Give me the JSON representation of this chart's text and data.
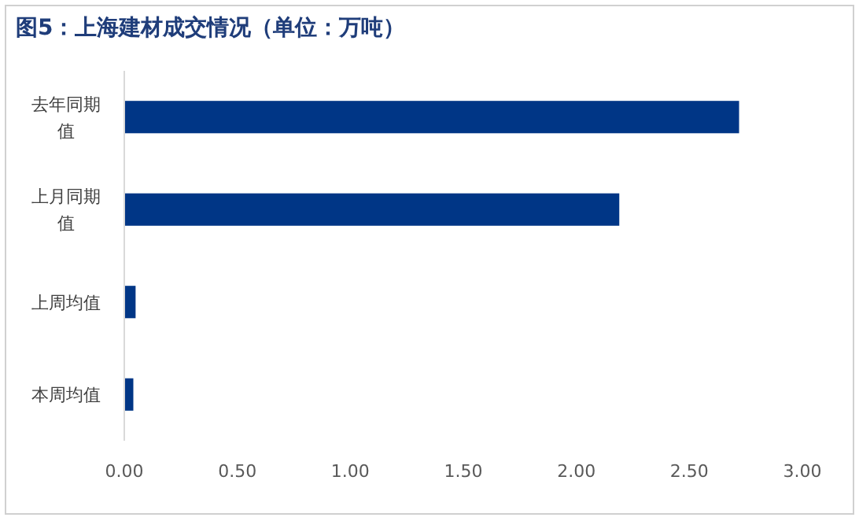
{
  "chart_data": {
    "type": "bar",
    "orientation": "horizontal",
    "title": "图5：上海建材成交情况（单位：万吨）",
    "categories": [
      "去年同期值",
      "上月同期值",
      "上周均值",
      "本周均值"
    ],
    "values": [
      2.72,
      2.19,
      0.05,
      0.04
    ],
    "color": "#003686",
    "xlim": [
      0,
      3
    ],
    "xticks": [
      {
        "value": 0,
        "label": "0.00"
      },
      {
        "value": 0.5,
        "label": "0.50"
      },
      {
        "value": 1,
        "label": "1.00"
      },
      {
        "value": 1.5,
        "label": "1.50"
      },
      {
        "value": 2,
        "label": "2.00"
      },
      {
        "value": 2.5,
        "label": "2.50"
      },
      {
        "value": 3,
        "label": "3.00"
      }
    ],
    "grid": false
  }
}
